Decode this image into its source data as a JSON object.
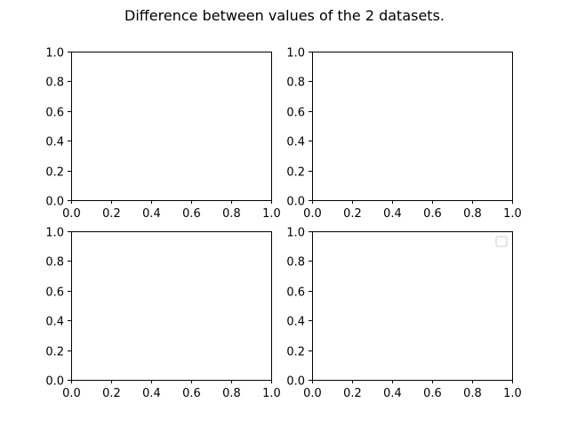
{
  "figure": {
    "suptitle": "Difference between values of the 2 datasets."
  },
  "chart_data": [
    {
      "type": "line",
      "title": "",
      "xlabel": "",
      "ylabel": "",
      "xlim": [
        0.0,
        1.0
      ],
      "ylim": [
        0.0,
        1.0
      ],
      "xticks": [
        "0.0",
        "0.2",
        "0.4",
        "0.6",
        "0.8",
        "1.0"
      ],
      "yticks": [
        "0.0",
        "0.2",
        "0.4",
        "0.6",
        "0.8",
        "1.0"
      ],
      "series": [],
      "grid": false,
      "legend": "none"
    },
    {
      "type": "line",
      "title": "",
      "xlabel": "",
      "ylabel": "",
      "xlim": [
        0.0,
        1.0
      ],
      "ylim": [
        0.0,
        1.0
      ],
      "xticks": [
        "0.0",
        "0.2",
        "0.4",
        "0.6",
        "0.8",
        "1.0"
      ],
      "yticks": [
        "0.0",
        "0.2",
        "0.4",
        "0.6",
        "0.8",
        "1.0"
      ],
      "series": [],
      "grid": false,
      "legend": "none"
    },
    {
      "type": "line",
      "title": "",
      "xlabel": "",
      "ylabel": "",
      "xlim": [
        0.0,
        1.0
      ],
      "ylim": [
        0.0,
        1.0
      ],
      "xticks": [
        "0.0",
        "0.2",
        "0.4",
        "0.6",
        "0.8",
        "1.0"
      ],
      "yticks": [
        "0.0",
        "0.2",
        "0.4",
        "0.6",
        "0.8",
        "1.0"
      ],
      "series": [],
      "grid": false,
      "legend": "none"
    },
    {
      "type": "line",
      "title": "",
      "xlabel": "",
      "ylabel": "",
      "xlim": [
        0.0,
        1.0
      ],
      "ylim": [
        0.0,
        1.0
      ],
      "xticks": [
        "0.0",
        "0.2",
        "0.4",
        "0.6",
        "0.8",
        "1.0"
      ],
      "yticks": [
        "0.0",
        "0.2",
        "0.4",
        "0.6",
        "0.8",
        "1.0"
      ],
      "series": [],
      "grid": false,
      "legend": "upper right (empty)"
    }
  ]
}
